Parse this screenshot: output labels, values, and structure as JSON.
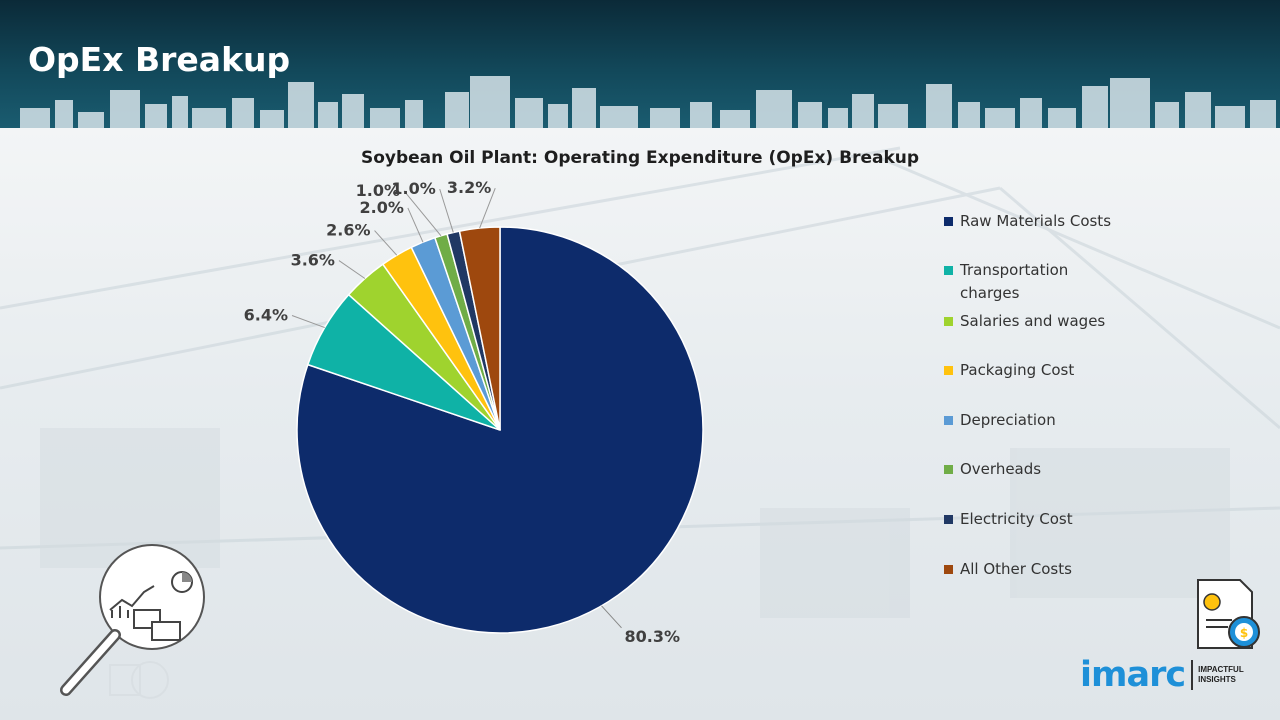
{
  "header": {
    "title": "OpEx Breakup"
  },
  "chart_data": {
    "type": "pie",
    "title": "Soybean Oil Plant: Operating Expenditure (OpEx) Breakup",
    "legend_position": "right",
    "slices": [
      {
        "label": "Raw Materials Costs",
        "value": 80.3,
        "display": "80.3%",
        "color": "#0d2b6b"
      },
      {
        "label": "Transportation charges",
        "value": 6.4,
        "display": "6.4%",
        "color": "#0fb2a6"
      },
      {
        "label": "Salaries and wages",
        "value": 3.6,
        "display": "3.6%",
        "color": "#9fd32e"
      },
      {
        "label": "Packaging Cost",
        "value": 2.6,
        "display": "2.6%",
        "color": "#ffc20e"
      },
      {
        "label": "Depreciation",
        "value": 2.0,
        "display": "2.0%",
        "color": "#5b9bd5"
      },
      {
        "label": "Overheads",
        "value": 1.0,
        "display": "1.0%",
        "color": "#70ad47"
      },
      {
        "label": "Electricity Cost",
        "value": 1.0,
        "display": "1.0%",
        "color": "#203864"
      },
      {
        "label": "All Other Costs",
        "value": 3.2,
        "display": "3.2%",
        "color": "#9e480e"
      }
    ]
  },
  "logo": {
    "word": "imarc",
    "tagline_1": "IMPACTFUL",
    "tagline_2": "INSIGHTS"
  },
  "icons": [
    "magnifier-analytics-icon",
    "invoice-gear-icon"
  ]
}
